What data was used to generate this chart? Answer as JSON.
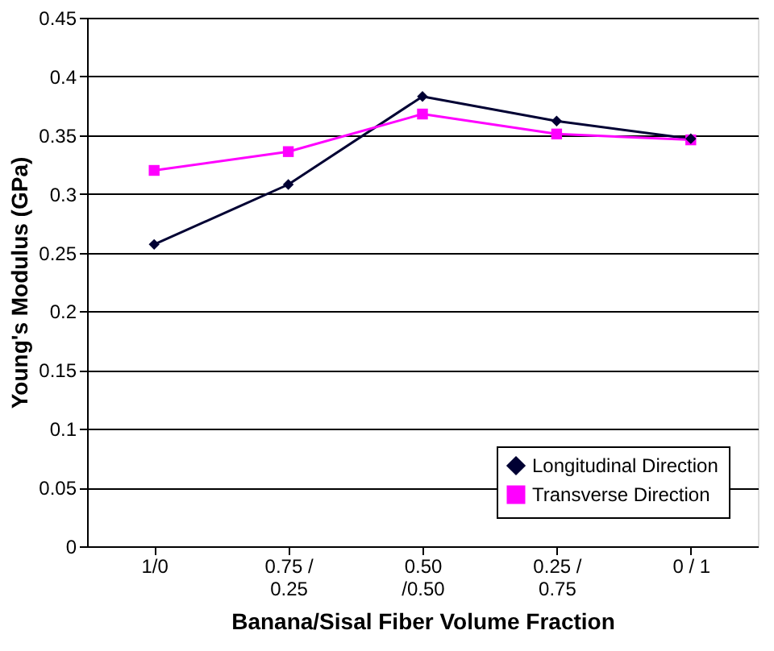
{
  "chart_data": {
    "type": "line",
    "xlabel": "Banana/Sisal Fiber Volume Fraction",
    "ylabel": "Young's Modulus (GPa)",
    "categories": [
      "1/0",
      "0.75 /\n0.25",
      "0.50\n/0.50",
      "0.25 /\n0.75",
      "0 / 1"
    ],
    "series": [
      {
        "name": "Longitudinal Direction",
        "color": "#000033",
        "marker": "diamond",
        "values": [
          0.257,
          0.308,
          0.383,
          0.362,
          0.347
        ]
      },
      {
        "name": "Transverse Direction",
        "color": "#ff00ff",
        "marker": "square",
        "values": [
          0.32,
          0.336,
          0.368,
          0.351,
          0.346
        ]
      }
    ],
    "ylim": [
      0,
      0.45
    ],
    "yticks": [
      0,
      0.05,
      0.1,
      0.15,
      0.2,
      0.25,
      0.3,
      0.35,
      0.4,
      0.45
    ],
    "grid": "y",
    "legend": "bottom right",
    "line_style": "solid"
  }
}
